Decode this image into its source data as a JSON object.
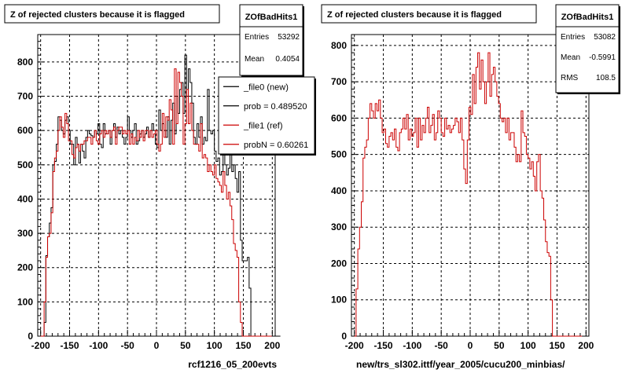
{
  "chart_data": [
    {
      "type": "histogram",
      "title": "Z of rejected clusters  because it is flagged",
      "xlabel": "rcf1216_05_200evts",
      "xlim": [
        -205,
        205
      ],
      "ylim": [
        0,
        880
      ],
      "x_ticks": [
        -200,
        -150,
        -100,
        -50,
        0,
        50,
        100,
        150,
        200
      ],
      "y_ticks": [
        0,
        100,
        200,
        300,
        400,
        500,
        600,
        700,
        800
      ],
      "grid": true,
      "stats": {
        "name": "ZOfBadHits1",
        "rows": [
          {
            "label": "Entries",
            "value": "53292"
          },
          {
            "label": "Mean",
            "value": "0.4054"
          }
        ]
      },
      "legend": {
        "entries": [
          {
            "label": "_file0 (new)",
            "color": "#000000"
          },
          {
            "label": "prob = 0.489520",
            "color": "#000000"
          },
          {
            "label": "_file1 (ref)",
            "color": "#cc0000"
          },
          {
            "label": "probN = 0.60261",
            "color": "#cc0000"
          }
        ]
      },
      "bin_edges_start": -200,
      "bin_width": 3,
      "series": [
        {
          "name": "_file0 (new)",
          "color": "#000000",
          "values": [
            0,
            0,
            40,
            235,
            290,
            330,
            375,
            500,
            510,
            560,
            640,
            630,
            600,
            590,
            630,
            640,
            600,
            560,
            560,
            500,
            580,
            560,
            505,
            560,
            540,
            520,
            580,
            600,
            590,
            585,
            580,
            600,
            590,
            620,
            560,
            550,
            620,
            590,
            590,
            600,
            560,
            600,
            620,
            580,
            610,
            590,
            600,
            580,
            560,
            580,
            640,
            600,
            580,
            600,
            620,
            560,
            570,
            590,
            600,
            580,
            590,
            610,
            580,
            600,
            620,
            600,
            560,
            550,
            660,
            600,
            620,
            600,
            580,
            640,
            560,
            630,
            680,
            590,
            700,
            650,
            720,
            740,
            650,
            820,
            700,
            780,
            740,
            680,
            580,
            560,
            620,
            580,
            640,
            560,
            580,
            570,
            720,
            600,
            590,
            600,
            540,
            510,
            520,
            470,
            480,
            530,
            500,
            470,
            490,
            560,
            480,
            500,
            460,
            420,
            480,
            280,
            220,
            220,
            220,
            230,
            140,
            0,
            0,
            0,
            0,
            0,
            0,
            0,
            0,
            0,
            0,
            0,
            0,
            0,
            0,
            0,
            0,
            0
          ]
        },
        {
          "name": "_file1 (ref)",
          "color": "#cc0000",
          "values": [
            0,
            0,
            100,
            230,
            290,
            300,
            360,
            480,
            520,
            540,
            600,
            640,
            610,
            580,
            650,
            620,
            570,
            570,
            530,
            520,
            550,
            560,
            540,
            560,
            560,
            570,
            570,
            580,
            580,
            560,
            580,
            600,
            570,
            560,
            590,
            600,
            580,
            600,
            590,
            600,
            580,
            600,
            610,
            560,
            600,
            610,
            610,
            590,
            600,
            590,
            600,
            560,
            590,
            560,
            580,
            570,
            600,
            580,
            600,
            570,
            600,
            600,
            580,
            600,
            580,
            590,
            600,
            560,
            540,
            560,
            650,
            580,
            640,
            630,
            690,
            660,
            560,
            780,
            620,
            770,
            740,
            700,
            560,
            620,
            720,
            620,
            680,
            600,
            560,
            560,
            560,
            540,
            620,
            520,
            530,
            520,
            480,
            500,
            480,
            470,
            500,
            460,
            450,
            440,
            420,
            480,
            440,
            400,
            420,
            380,
            340,
            270,
            250,
            230,
            100,
            40,
            0,
            0,
            0,
            0,
            0,
            0,
            0,
            0,
            0,
            0,
            0,
            0,
            0,
            0,
            0,
            0,
            0
          ]
        }
      ]
    },
    {
      "type": "histogram",
      "title": "Z of rejected clusters  because it is flagged",
      "xlabel": "new/trs_sl302.ittf/year_2005/cucu200_minbias/",
      "xlim": [
        -205,
        205
      ],
      "ylim": [
        0,
        830
      ],
      "x_ticks": [
        -200,
        -150,
        -100,
        -50,
        0,
        50,
        100,
        150,
        200
      ],
      "y_ticks": [
        0,
        100,
        200,
        300,
        400,
        500,
        600,
        700,
        800
      ],
      "grid": true,
      "stats": {
        "name": "ZOfBadHits1",
        "rows": [
          {
            "label": "Entries",
            "value": "53082"
          },
          {
            "label": "Mean",
            "value": "-0.5991"
          },
          {
            "label": "RMS",
            "value": "108.5"
          }
        ]
      },
      "bin_edges_start": -200,
      "bin_width": 3,
      "series": [
        {
          "name": "_file1 (ref)",
          "color": "#cc0000",
          "values": [
            0,
            130,
            240,
            300,
            370,
            490,
            520,
            540,
            600,
            640,
            620,
            600,
            640,
            620,
            650,
            600,
            560,
            570,
            530,
            520,
            550,
            560,
            540,
            570,
            520,
            510,
            560,
            570,
            600,
            570,
            610,
            540,
            570,
            550,
            560,
            600,
            520,
            600,
            540,
            580,
            560,
            600,
            630,
            560,
            580,
            610,
            540,
            560,
            620,
            600,
            560,
            550,
            600,
            570,
            580,
            560,
            570,
            580,
            600,
            590,
            560,
            600,
            540,
            460,
            420,
            540,
            630,
            610,
            720,
            640,
            740,
            780,
            680,
            760,
            700,
            640,
            700,
            780,
            660,
            720,
            740,
            700,
            660,
            640,
            600,
            590,
            600,
            560,
            600,
            540,
            560,
            560,
            520,
            480,
            500,
            480,
            620,
            560,
            550,
            500,
            490,
            460,
            480,
            440,
            400,
            480,
            500,
            400,
            380,
            320,
            260,
            230,
            220,
            100,
            0,
            0,
            0,
            0,
            0,
            0,
            0,
            0,
            0,
            0,
            0,
            0,
            0,
            0,
            0,
            0,
            0
          ]
        }
      ]
    }
  ]
}
